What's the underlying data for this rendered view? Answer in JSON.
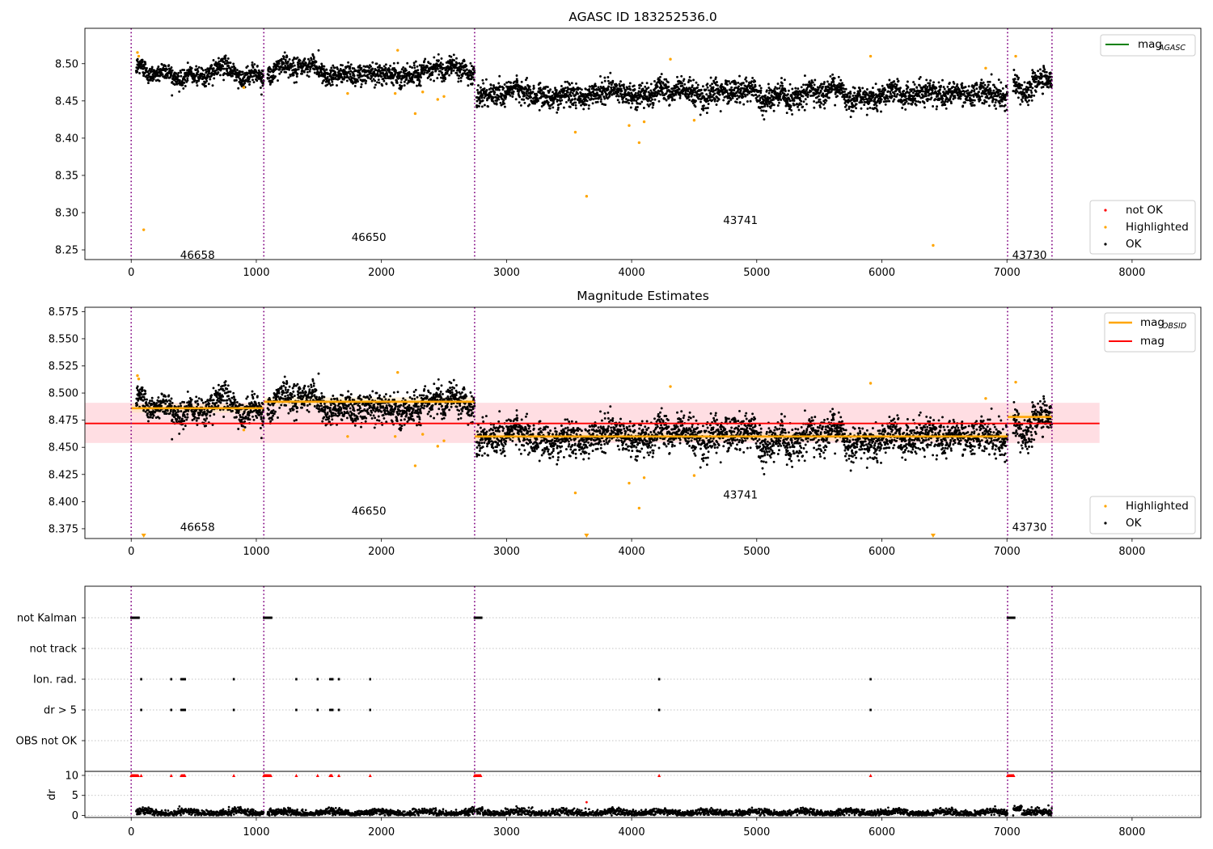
{
  "chart_data": [
    {
      "type": "scatter",
      "title": "AGASC ID 183252536.0",
      "xlabel": "",
      "ylabel": "",
      "xlim": [
        -370,
        8550
      ],
      "ylim": [
        8.237,
        8.5475
      ],
      "x_ticks": [
        "0",
        "1000",
        "2000",
        "3000",
        "4000",
        "5000",
        "6000",
        "7000",
        "8000"
      ],
      "y_ticks": [
        "8.25",
        "8.30",
        "8.35",
        "8.40",
        "8.45",
        "8.50"
      ],
      "y_tick_values": [
        8.25,
        8.3,
        8.35,
        8.4,
        8.45,
        8.5
      ],
      "grid": false,
      "legend_top": {
        "placement": "top-right",
        "entries": [
          {
            "label": "mag",
            "sub": "AGASC",
            "color": "#008000",
            "kind": "line"
          }
        ]
      },
      "legend_bottom": {
        "placement": "lower-right",
        "entries": [
          {
            "label": "not OK",
            "color": "#ff0000",
            "kind": "dot"
          },
          {
            "label": "Highlighted",
            "color": "#ffa500",
            "kind": "dot"
          },
          {
            "label": "OK",
            "color": "#000000",
            "kind": "dot"
          }
        ]
      },
      "observations": [
        {
          "obsid": "46658",
          "start": 0,
          "end": 1060,
          "label_x": 530,
          "label_y": 8.238
        },
        {
          "obsid": "46650",
          "start": 1060,
          "end": 2745,
          "label_x": 1900,
          "label_y": 8.262
        },
        {
          "obsid": "43741",
          "start": 2745,
          "end": 7005,
          "label_x": 4870,
          "label_y": 8.285
        },
        {
          "obsid": "43730",
          "start": 7005,
          "end": 7360,
          "label_x": 7180,
          "label_y": 8.238
        }
      ],
      "ok_segments": [
        {
          "x0": 40,
          "x1": 1060,
          "mean": 8.488,
          "sd": 0.008
        },
        {
          "x0": 1090,
          "x1": 2745,
          "mean": 8.491,
          "sd": 0.009
        },
        {
          "x0": 2760,
          "x1": 7005,
          "mean": 8.46,
          "sd": 0.01
        },
        {
          "x0": 7050,
          "x1": 7360,
          "mean": 8.476,
          "sd": 0.01
        }
      ],
      "highlighted_points": [
        [
          50,
          8.515
        ],
        [
          60,
          8.51
        ],
        [
          100,
          8.277
        ],
        [
          900,
          8.468
        ],
        [
          1730,
          8.46
        ],
        [
          2110,
          8.46
        ],
        [
          2130,
          8.518
        ],
        [
          2270,
          8.433
        ],
        [
          2330,
          8.462
        ],
        [
          2450,
          8.452
        ],
        [
          2500,
          8.456
        ],
        [
          3550,
          8.408
        ],
        [
          3640,
          8.322
        ],
        [
          3980,
          8.417
        ],
        [
          4060,
          8.394
        ],
        [
          4100,
          8.422
        ],
        [
          4310,
          8.506
        ],
        [
          4500,
          8.424
        ],
        [
          5910,
          8.51
        ],
        [
          6410,
          8.256
        ],
        [
          6830,
          8.494
        ],
        [
          7070,
          8.51
        ]
      ]
    },
    {
      "type": "scatter",
      "title": "Magnitude Estimates",
      "xlabel": "",
      "ylabel": "",
      "xlim": [
        -370,
        8550
      ],
      "ylim": [
        8.366,
        8.579
      ],
      "x_ticks": [
        "0",
        "1000",
        "2000",
        "3000",
        "4000",
        "5000",
        "6000",
        "7000",
        "8000"
      ],
      "y_ticks": [
        "8.375",
        "8.400",
        "8.425",
        "8.450",
        "8.475",
        "8.500",
        "8.525",
        "8.550",
        "8.575"
      ],
      "y_tick_values": [
        8.375,
        8.4,
        8.425,
        8.45,
        8.475,
        8.5,
        8.525,
        8.55,
        8.575
      ],
      "grid": false,
      "legend_top": {
        "placement": "top-right",
        "entries": [
          {
            "label": "mag",
            "sub": "OBSID",
            "color": "#ffa500",
            "kind": "line"
          },
          {
            "label": "mag",
            "sub": "",
            "color": "#ff0000",
            "kind": "line"
          }
        ]
      },
      "legend_bottom": {
        "placement": "lower-right",
        "entries": [
          {
            "label": "Highlighted",
            "color": "#ffa500",
            "kind": "dot"
          },
          {
            "label": "OK",
            "color": "#000000",
            "kind": "dot"
          }
        ]
      },
      "mag": 8.472,
      "mag_band": [
        8.454,
        8.491
      ],
      "mag_span": [
        -370,
        7740
      ],
      "mag_obsid": [
        {
          "x0": 0,
          "x1": 1060,
          "value": 8.486
        },
        {
          "x0": 1060,
          "x1": 2745,
          "value": 8.492
        },
        {
          "x0": 2745,
          "x1": 7005,
          "value": 8.46
        },
        {
          "x0": 7005,
          "x1": 7360,
          "value": 8.478
        }
      ],
      "observations": [
        {
          "obsid": "46658",
          "label_x": 530,
          "label_y": 8.373
        },
        {
          "obsid": "46650",
          "label_x": 1900,
          "label_y": 8.388
        },
        {
          "obsid": "43741",
          "label_x": 4870,
          "label_y": 8.403
        },
        {
          "obsid": "43730",
          "label_x": 7180,
          "label_y": 8.373
        }
      ],
      "highlighted_points": [
        [
          50,
          8.516
        ],
        [
          60,
          8.513
        ],
        [
          900,
          8.466
        ],
        [
          1730,
          8.46
        ],
        [
          2110,
          8.46
        ],
        [
          2130,
          8.519
        ],
        [
          2270,
          8.433
        ],
        [
          2330,
          8.462
        ],
        [
          2450,
          8.451
        ],
        [
          2500,
          8.456
        ],
        [
          3550,
          8.408
        ],
        [
          3980,
          8.417
        ],
        [
          4060,
          8.394
        ],
        [
          4100,
          8.422
        ],
        [
          4310,
          8.506
        ],
        [
          4500,
          8.424
        ],
        [
          5910,
          8.509
        ],
        [
          6830,
          8.495
        ],
        [
          7070,
          8.51
        ]
      ],
      "below_range_markers": [
        100,
        3640,
        6410
      ]
    },
    {
      "type": "scatter",
      "title": "",
      "xlabel": "",
      "ylabel": "",
      "xlim": [
        -370,
        8550
      ],
      "rows": [
        "not Kalman",
        "not track",
        "Ion. rad.",
        "dr > 5",
        "OBS not OK"
      ],
      "x_ticks": [
        "0",
        "1000",
        "2000",
        "3000",
        "4000",
        "5000",
        "6000",
        "7000",
        "8000"
      ],
      "grid": true,
      "flags": {
        "not Kalman": [
          [
            0,
            60
          ],
          [
            1060,
            1120
          ],
          [
            2745,
            2800
          ],
          [
            7005,
            7060
          ]
        ],
        "not track": [],
        "Ion. rad.": [
          [
            80
          ],
          [
            320
          ],
          [
            400,
            430
          ],
          [
            820
          ],
          [
            1320
          ],
          [
            1490
          ],
          [
            1590,
            1610
          ],
          [
            1660
          ],
          [
            1910
          ],
          [
            4220
          ],
          [
            5910
          ]
        ],
        "dr > 5": [
          [
            80
          ],
          [
            320
          ],
          [
            400,
            430
          ],
          [
            820
          ],
          [
            1320
          ],
          [
            1490
          ],
          [
            1590,
            1610
          ],
          [
            1660
          ],
          [
            1910
          ],
          [
            4220
          ],
          [
            5910
          ]
        ],
        "OBS not OK": []
      }
    },
    {
      "type": "scatter",
      "title": "",
      "xlabel": "",
      "ylabel": "dr",
      "xlim": [
        -370,
        8550
      ],
      "ylim": [
        -0.5,
        11
      ],
      "y_ticks": [
        "0",
        "5",
        "10"
      ],
      "y_tick_values": [
        0,
        5,
        10
      ],
      "x_ticks": [
        "0",
        "1000",
        "2000",
        "3000",
        "4000",
        "5000",
        "6000",
        "7000",
        "8000"
      ],
      "clipped_at": 10,
      "clipped_points": [
        [
          0,
          60
        ],
        [
          80
        ],
        [
          320
        ],
        [
          400,
          430
        ],
        [
          820
        ],
        [
          1060,
          1120
        ],
        [
          1320
        ],
        [
          1490
        ],
        [
          1590,
          1610
        ],
        [
          1660
        ],
        [
          1910
        ],
        [
          2745,
          2800
        ],
        [
          4220
        ],
        [
          5910
        ],
        [
          7005,
          7060
        ]
      ],
      "outlier_points": [
        [
          3640,
          3.3
        ]
      ]
    }
  ],
  "colors": {
    "ok": "#000000",
    "highlighted": "#ffa500",
    "not_ok": "#ff0000",
    "mag_agasc": "#008000",
    "mag": "#ff0000",
    "mag_obsid": "#ffa500",
    "mag_band": "#ffb6c1",
    "obs_boundary": "#800080"
  }
}
